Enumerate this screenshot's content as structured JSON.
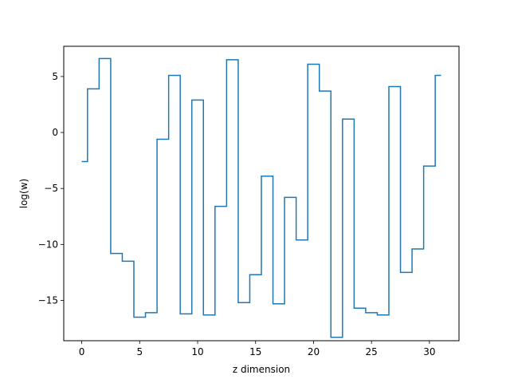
{
  "chart_data": {
    "type": "line",
    "drawstyle": "steps-mid",
    "xlabel": "z dimension",
    "ylabel": "log(w)",
    "xlim": [
      -1.55,
      32.55
    ],
    "ylim": [
      -18.6,
      7.7
    ],
    "xticks": [
      0,
      5,
      10,
      15,
      20,
      25,
      30
    ],
    "xtick_labels": [
      "0",
      "5",
      "10",
      "15",
      "20",
      "25",
      "30"
    ],
    "yticks": [
      -15,
      -10,
      -5,
      0,
      5
    ],
    "ytick_labels": [
      "−15",
      "−10",
      "−5",
      "0",
      "5"
    ],
    "grid": false,
    "series": [
      {
        "color": "#1f77b4",
        "x": [
          0,
          1,
          2,
          3,
          4,
          5,
          6,
          7,
          8,
          9,
          10,
          11,
          12,
          13,
          14,
          15,
          16,
          17,
          18,
          19,
          20,
          21,
          22,
          23,
          24,
          25,
          26,
          27,
          28,
          29,
          30,
          31
        ],
        "y": [
          -2.6,
          3.9,
          6.6,
          -10.8,
          -11.5,
          -16.5,
          -16.1,
          -0.6,
          5.1,
          -16.2,
          2.9,
          -16.3,
          -6.6,
          6.5,
          -15.2,
          -12.7,
          -3.9,
          -15.3,
          -5.8,
          -9.6,
          6.1,
          3.7,
          -18.3,
          1.2,
          -15.7,
          -16.1,
          -16.3,
          4.1,
          -12.5,
          -10.4,
          -3.0,
          5.1
        ]
      }
    ]
  }
}
